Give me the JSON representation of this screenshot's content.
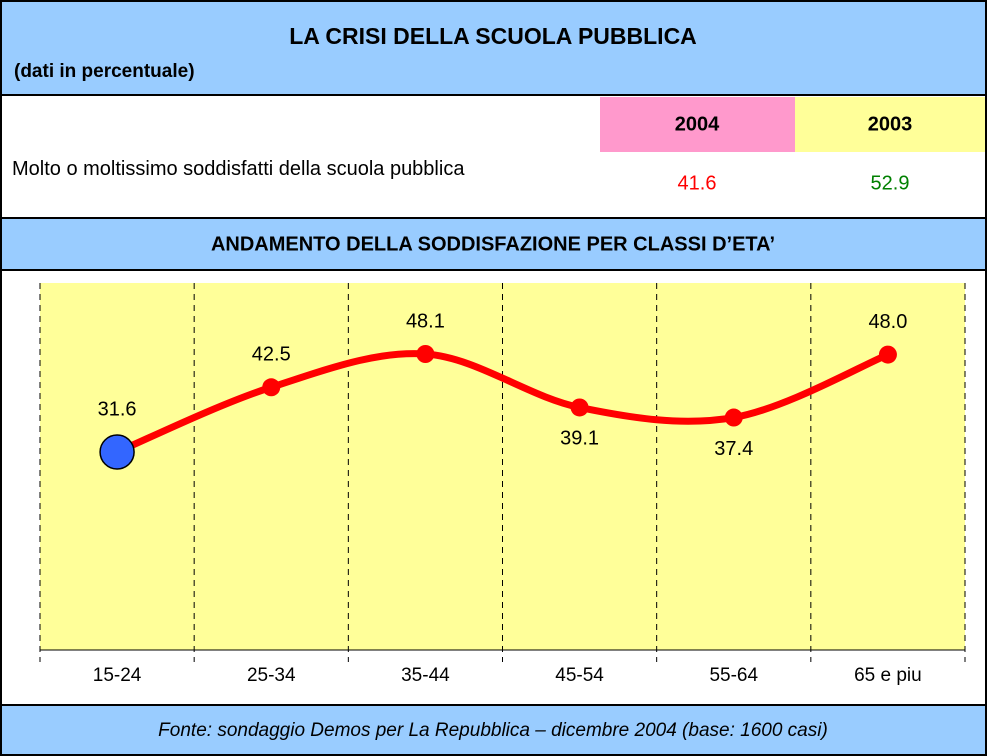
{
  "header": {
    "title": "LA CRISI DELLA SCUOLA PUBBLICA",
    "subtitle": "(dati in percentuale)"
  },
  "table": {
    "columns": [
      "2004",
      "2003"
    ],
    "column_colors": [
      "#ff99cc",
      "#ffff99"
    ],
    "rows": [
      {
        "label": "Molto o moltissimo soddisfatti della scuola pubblica",
        "values": [
          41.6,
          52.9
        ],
        "value_labels": [
          "41.6",
          "52.9"
        ],
        "value_colors": [
          "#ff0000",
          "#008000"
        ]
      }
    ]
  },
  "chart_data": {
    "type": "line",
    "title": "ANDAMENTO DELLA SODDISFAZIONE PER CLASSI D’ETA’",
    "categories": [
      "15-24",
      "25-34",
      "35-44",
      "45-54",
      "55-64",
      "65 e piu"
    ],
    "series": [
      {
        "name": null,
        "color": "#ff0000",
        "marker_colors": [
          "#3366ff",
          "#ff0000",
          "#ff0000",
          "#ff0000",
          "#ff0000",
          "#ff0000"
        ],
        "values": [
          31.6,
          42.5,
          48.1,
          39.1,
          37.4,
          48.0
        ],
        "value_labels": [
          "31.6",
          "42.5",
          "48.1",
          "39.1",
          "37.4",
          "48.0"
        ],
        "label_positions": [
          "above",
          "above",
          "above",
          "below",
          "below",
          "above"
        ]
      }
    ],
    "plot_color": "#ffff99",
    "grid": true
  },
  "footer": {
    "source": "Fonte: sondaggio Demos per La Repubblica – dicembre 2004 (base: 1600 casi)"
  }
}
